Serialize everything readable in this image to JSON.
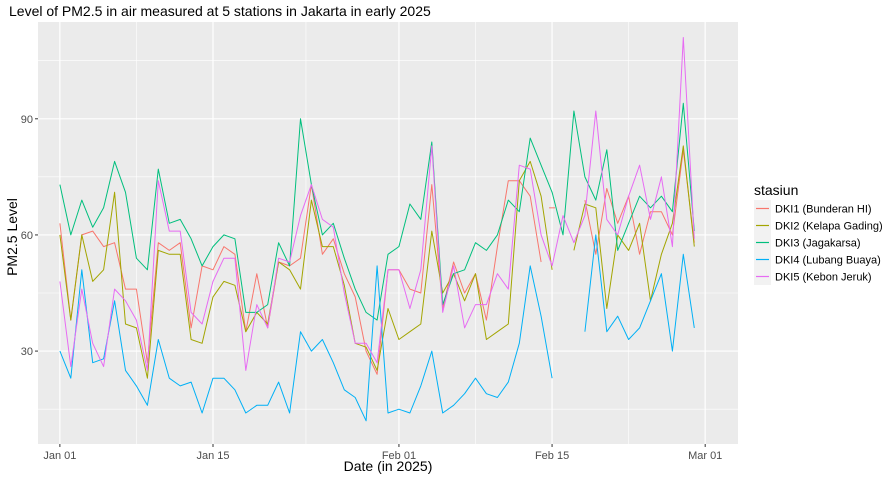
{
  "chart_data": {
    "type": "line",
    "title": "Level of PM2.5 in air measured at 5 stations in Jakarta in early 2025",
    "xlabel": "Date (in 2025)",
    "ylabel": "PM2.5 Level",
    "xlim": [
      "2024-12-30",
      "2025-03-04"
    ],
    "ylim": [
      6,
      115
    ],
    "x_ticks": [
      {
        "date": "2025-01-01",
        "label": "Jan 01"
      },
      {
        "date": "2025-01-15",
        "label": "Jan 15"
      },
      {
        "date": "2025-02-01",
        "label": "Feb 01"
      },
      {
        "date": "2025-02-15",
        "label": "Feb 15"
      },
      {
        "date": "2025-03-01",
        "label": "Mar 01"
      }
    ],
    "y_ticks": [
      30,
      60,
      90
    ],
    "grid": true,
    "legend": {
      "title": "stasiun",
      "position": "right"
    },
    "start_date": "2025-01-01",
    "series": [
      {
        "name": "DKI1 (Bunderan HI)",
        "color": "#F8766D",
        "values": [
          63,
          38,
          60,
          61,
          57,
          58,
          46,
          46,
          27,
          58,
          56,
          58,
          36,
          52,
          51,
          57,
          55,
          35,
          50,
          36,
          53,
          52,
          54,
          73,
          55,
          59,
          50,
          44,
          30,
          24,
          51,
          51,
          46,
          45,
          73,
          41,
          53,
          45,
          50,
          38,
          57,
          74,
          74,
          70,
          53,
          67,
          null,
          null,
          69,
          55,
          72,
          63,
          70,
          55,
          66,
          66,
          60,
          82,
          58
        ],
        "segments": [
          [
            0,
            44
          ],
          [
            45,
            45
          ],
          [
            48,
            58
          ]
        ]
      },
      {
        "name": "DKI2 (Kelapa Gading)",
        "color": "#A3A500",
        "values": [
          60,
          38,
          60,
          48,
          51,
          71,
          37,
          36,
          23,
          56,
          55,
          55,
          33,
          32,
          44,
          48,
          47,
          35,
          40,
          37,
          53,
          51,
          46,
          69,
          57,
          57,
          47,
          32,
          31,
          25,
          41,
          33,
          35,
          37,
          61,
          45,
          50,
          43,
          50,
          33,
          35,
          37,
          74,
          79,
          70,
          51,
          null,
          56,
          68,
          67,
          41,
          60,
          56,
          63,
          43,
          55,
          63,
          83,
          57
        ],
        "segments": [
          [
            0,
            45
          ],
          [
            47,
            58
          ]
        ]
      },
      {
        "name": "DKI3 (Jagakarsa)",
        "color": "#00BF7D",
        "values": [
          73,
          60,
          69,
          62,
          67,
          79,
          71,
          54,
          51,
          77,
          63,
          64,
          59,
          52,
          57,
          60,
          59,
          40,
          40,
          42,
          58,
          52,
          90,
          73,
          60,
          63,
          54,
          46,
          40,
          38,
          55,
          57,
          68,
          64,
          84,
          42,
          50,
          51,
          58,
          56,
          60,
          69,
          66,
          85,
          78,
          71,
          60,
          92,
          75,
          69,
          82,
          56,
          63,
          70,
          67,
          70,
          66,
          94,
          61
        ],
        "segments": [
          [
            0,
            58
          ]
        ]
      },
      {
        "name": "DKI4 (Lubang Buaya)",
        "color": "#00B0F6",
        "values": [
          30,
          23,
          51,
          27,
          28,
          43,
          25,
          21,
          16,
          33,
          23,
          21,
          22,
          14,
          23,
          23,
          20,
          14,
          16,
          16,
          22,
          14,
          35,
          30,
          33,
          27,
          20,
          18,
          12,
          52,
          14,
          15,
          14,
          21,
          30,
          14,
          16,
          19,
          23,
          19,
          18,
          22,
          32,
          52,
          39,
          23,
          null,
          null,
          35,
          60,
          35,
          39,
          33,
          36,
          43,
          50,
          30,
          55,
          36
        ],
        "segments": [
          [
            0,
            45
          ],
          [
            48,
            58
          ]
        ]
      },
      {
        "name": "DKI5 (Kebon Jeruk)",
        "color": "#E76BF3",
        "values": [
          48,
          26,
          46,
          32,
          26,
          46,
          43,
          38,
          25,
          74,
          61,
          61,
          40,
          37,
          48,
          54,
          54,
          25,
          42,
          36,
          54,
          53,
          65,
          73,
          64,
          62,
          45,
          32,
          32,
          27,
          51,
          51,
          41,
          51,
          83,
          40,
          52,
          36,
          42,
          42,
          50,
          46,
          78,
          77,
          60,
          52,
          65,
          58,
          65,
          92,
          64,
          60,
          70,
          78,
          64,
          75,
          57,
          111,
          59
        ],
        "segments": [
          [
            0,
            58
          ]
        ]
      }
    ]
  }
}
